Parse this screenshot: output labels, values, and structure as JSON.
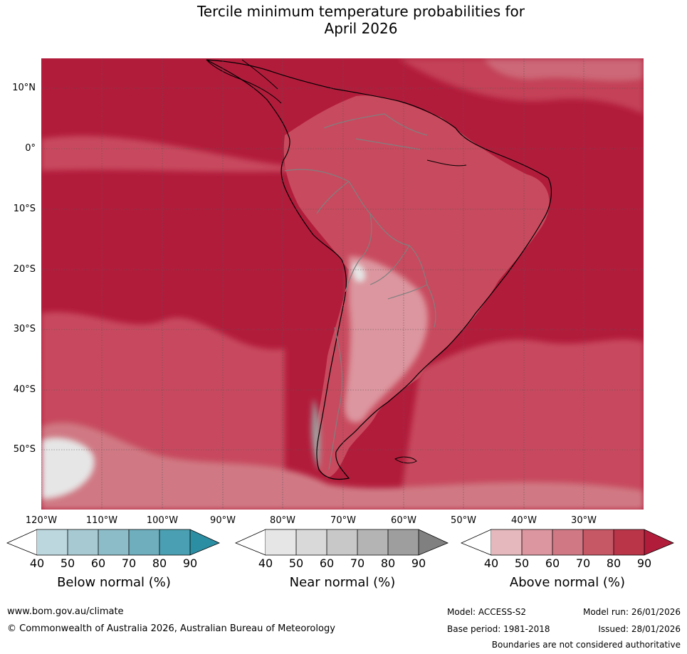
{
  "title": {
    "line1": "Tercile minimum temperature probabilities for",
    "line2": "April 2026"
  },
  "map": {
    "lat_labels": [
      "10°N",
      "0°",
      "10°S",
      "20°S",
      "30°S",
      "40°S",
      "50°S"
    ],
    "lon_labels": [
      "120°W",
      "110°W",
      "100°W",
      "90°W",
      "80°W",
      "70°W",
      "60°W",
      "50°W",
      "40°W",
      "30°W"
    ],
    "colors": {
      "ocean_dominant": "#b21c3b",
      "land_dominant": "#c84a5e",
      "near_normal_area": "#d9d9d9"
    }
  },
  "legend": {
    "below": {
      "title": "Below normal (%)",
      "ticks": [
        "40",
        "50",
        "60",
        "70",
        "80",
        "90"
      ],
      "colors": [
        "#bcd7de",
        "#a6c9d2",
        "#8cbcc8",
        "#6eaebd",
        "#4aa0b2",
        "#2c8ea3"
      ]
    },
    "near": {
      "title": "Near normal (%)",
      "ticks": [
        "40",
        "50",
        "60",
        "70",
        "80",
        "90"
      ],
      "colors": [
        "#e6e6e6",
        "#d9d9d9",
        "#c8c8c8",
        "#b4b4b4",
        "#9e9e9e",
        "#808080"
      ]
    },
    "above": {
      "title": "Above normal (%)",
      "ticks": [
        "40",
        "50",
        "60",
        "70",
        "80",
        "90"
      ],
      "colors": [
        "#e4b8bd",
        "#dc969f",
        "#d07984",
        "#c65765",
        "#bb3549",
        "#b21c3b"
      ]
    }
  },
  "footer": {
    "website": "www.bom.gov.au/climate",
    "copyright": "© Commonwealth of Australia 2026, Australian Bureau of Meteorology",
    "model": "Model: ACCESS-S2",
    "model_run": "Model run: 26/01/2026",
    "base_period": "Base period: 1981-2018",
    "issued": "Issued: 28/01/2026",
    "disclaimer": "Boundaries are not considered authoritative"
  }
}
